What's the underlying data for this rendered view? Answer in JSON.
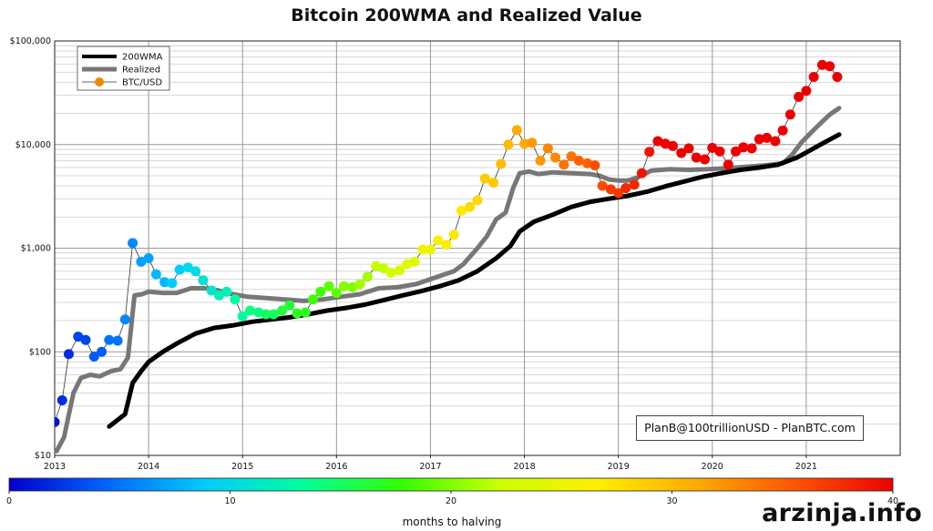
{
  "watermark": "arzinja.info",
  "credit": "PlanB@100trillionUSD  -  PlanBTC.com",
  "chart_data": {
    "type": "line",
    "title": "Bitcoin 200WMA and Realized Value",
    "y_scale": "log",
    "ylim": [
      10,
      100000
    ],
    "xlim": [
      2013.0,
      2022.0
    ],
    "y_ticks": [
      10,
      100,
      1000,
      10000,
      100000
    ],
    "y_tick_labels": [
      "$10",
      "$100",
      "$1,000",
      "$10,000",
      "$100,000"
    ],
    "x_ticks": [
      2013,
      2014,
      2015,
      2016,
      2017,
      2018,
      2019,
      2020,
      2021
    ],
    "x_tick_labels": [
      "2013",
      "2014",
      "2015",
      "2016",
      "2017",
      "2018",
      "2019",
      "2020",
      "2021"
    ],
    "grid": true,
    "legend_position": "top-left",
    "colorbar": {
      "label": "months to halving",
      "ticks": [
        0,
        10,
        20,
        30,
        40
      ],
      "tick_labels": [
        "0",
        "10",
        "20",
        "30",
        "40"
      ],
      "colors": [
        "#0000cc",
        "#0066ff",
        "#00ccff",
        "#00ff99",
        "#33ff00",
        "#ccff00",
        "#ffee00",
        "#ffaa00",
        "#ff5500",
        "#ee0000"
      ]
    },
    "series": [
      {
        "name": "200WMA",
        "color": "#000000",
        "points": [
          [
            2013.58,
            19
          ],
          [
            2013.75,
            25
          ],
          [
            2013.83,
            50
          ],
          [
            2013.92,
            65
          ],
          [
            2014.0,
            80
          ],
          [
            2014.15,
            100
          ],
          [
            2014.3,
            120
          ],
          [
            2014.5,
            150
          ],
          [
            2014.7,
            170
          ],
          [
            2014.9,
            180
          ],
          [
            2015.1,
            195
          ],
          [
            2015.3,
            205
          ],
          [
            2015.5,
            215
          ],
          [
            2015.7,
            230
          ],
          [
            2015.9,
            250
          ],
          [
            2016.1,
            265
          ],
          [
            2016.3,
            285
          ],
          [
            2016.5,
            315
          ],
          [
            2016.7,
            350
          ],
          [
            2016.9,
            385
          ],
          [
            2017.1,
            430
          ],
          [
            2017.3,
            490
          ],
          [
            2017.5,
            600
          ],
          [
            2017.7,
            800
          ],
          [
            2017.85,
            1050
          ],
          [
            2017.95,
            1450
          ],
          [
            2018.1,
            1800
          ],
          [
            2018.3,
            2100
          ],
          [
            2018.5,
            2500
          ],
          [
            2018.7,
            2800
          ],
          [
            2018.9,
            3000
          ],
          [
            2019.1,
            3200
          ],
          [
            2019.3,
            3500
          ],
          [
            2019.5,
            3950
          ],
          [
            2019.7,
            4400
          ],
          [
            2019.9,
            4900
          ],
          [
            2020.1,
            5300
          ],
          [
            2020.3,
            5700
          ],
          [
            2020.5,
            6000
          ],
          [
            2020.7,
            6400
          ],
          [
            2020.9,
            7500
          ],
          [
            2021.0,
            8400
          ],
          [
            2021.15,
            10000
          ],
          [
            2021.35,
            12500
          ]
        ]
      },
      {
        "name": "Realized",
        "color": "#777777",
        "points": [
          [
            2013.02,
            11
          ],
          [
            2013.1,
            15
          ],
          [
            2013.2,
            40
          ],
          [
            2013.28,
            56
          ],
          [
            2013.38,
            60
          ],
          [
            2013.48,
            58
          ],
          [
            2013.6,
            65
          ],
          [
            2013.7,
            68
          ],
          [
            2013.78,
            88
          ],
          [
            2013.85,
            350
          ],
          [
            2013.93,
            360
          ],
          [
            2014.0,
            380
          ],
          [
            2014.15,
            370
          ],
          [
            2014.3,
            370
          ],
          [
            2014.45,
            410
          ],
          [
            2014.6,
            410
          ],
          [
            2014.75,
            390
          ],
          [
            2014.9,
            360
          ],
          [
            2015.05,
            340
          ],
          [
            2015.25,
            330
          ],
          [
            2015.45,
            320
          ],
          [
            2015.65,
            310
          ],
          [
            2015.85,
            320
          ],
          [
            2016.05,
            340
          ],
          [
            2016.25,
            360
          ],
          [
            2016.45,
            410
          ],
          [
            2016.65,
            420
          ],
          [
            2016.85,
            450
          ],
          [
            2017.05,
            520
          ],
          [
            2017.25,
            600
          ],
          [
            2017.35,
            700
          ],
          [
            2017.5,
            1000
          ],
          [
            2017.6,
            1300
          ],
          [
            2017.7,
            1900
          ],
          [
            2017.8,
            2200
          ],
          [
            2017.88,
            3800
          ],
          [
            2017.95,
            5300
          ],
          [
            2018.05,
            5500
          ],
          [
            2018.15,
            5200
          ],
          [
            2018.3,
            5400
          ],
          [
            2018.5,
            5300
          ],
          [
            2018.7,
            5200
          ],
          [
            2018.8,
            5000
          ],
          [
            2018.9,
            4600
          ],
          [
            2019.0,
            4500
          ],
          [
            2019.1,
            4500
          ],
          [
            2019.2,
            4800
          ],
          [
            2019.35,
            5600
          ],
          [
            2019.55,
            5800
          ],
          [
            2019.75,
            5700
          ],
          [
            2019.95,
            5800
          ],
          [
            2020.15,
            5900
          ],
          [
            2020.35,
            6100
          ],
          [
            2020.55,
            6300
          ],
          [
            2020.75,
            6600
          ],
          [
            2020.85,
            8000
          ],
          [
            2020.95,
            10500
          ],
          [
            2021.05,
            13000
          ],
          [
            2021.15,
            16000
          ],
          [
            2021.25,
            19500
          ],
          [
            2021.35,
            22500
          ]
        ]
      },
      {
        "name": "BTC/USD",
        "color": "#ee8a00",
        "points": [
          [
            2013.0,
            21,
            1
          ],
          [
            2013.08,
            34,
            2
          ],
          [
            2013.15,
            95,
            2
          ],
          [
            2013.25,
            140,
            3
          ],
          [
            2013.33,
            130,
            3
          ],
          [
            2013.42,
            90,
            4
          ],
          [
            2013.5,
            100,
            4
          ],
          [
            2013.58,
            130,
            5
          ],
          [
            2013.67,
            128,
            5
          ],
          [
            2013.75,
            205,
            6
          ],
          [
            2013.83,
            1120,
            6
          ],
          [
            2013.92,
            740,
            7
          ],
          [
            2014.0,
            800,
            7
          ],
          [
            2014.08,
            560,
            8
          ],
          [
            2014.17,
            470,
            8
          ],
          [
            2014.25,
            460,
            9
          ],
          [
            2014.33,
            620,
            9
          ],
          [
            2014.42,
            650,
            10
          ],
          [
            2014.5,
            600,
            10
          ],
          [
            2014.58,
            490,
            11
          ],
          [
            2014.67,
            390,
            11
          ],
          [
            2014.75,
            350,
            12
          ],
          [
            2014.83,
            380,
            12
          ],
          [
            2014.92,
            320,
            13
          ],
          [
            2015.0,
            220,
            13
          ],
          [
            2015.08,
            250,
            14
          ],
          [
            2015.17,
            240,
            14
          ],
          [
            2015.25,
            230,
            15
          ],
          [
            2015.33,
            230,
            15
          ],
          [
            2015.42,
            250,
            16
          ],
          [
            2015.5,
            280,
            16
          ],
          [
            2015.58,
            235,
            17
          ],
          [
            2015.67,
            240,
            17
          ],
          [
            2015.75,
            320,
            18
          ],
          [
            2015.83,
            380,
            18
          ],
          [
            2015.92,
            430,
            19
          ],
          [
            2016.0,
            370,
            19
          ],
          [
            2016.08,
            430,
            20
          ],
          [
            2016.17,
            420,
            20
          ],
          [
            2016.25,
            450,
            21
          ],
          [
            2016.33,
            530,
            21
          ],
          [
            2016.42,
            670,
            22
          ],
          [
            2016.5,
            640,
            22
          ],
          [
            2016.58,
            580,
            23
          ],
          [
            2016.67,
            610,
            23
          ],
          [
            2016.75,
            700,
            24
          ],
          [
            2016.83,
            740,
            24
          ],
          [
            2016.92,
            970,
            25
          ],
          [
            2017.0,
            970,
            25
          ],
          [
            2017.08,
            1190,
            26
          ],
          [
            2017.17,
            1080,
            26
          ],
          [
            2017.25,
            1350,
            27
          ],
          [
            2017.33,
            2300,
            27
          ],
          [
            2017.42,
            2500,
            28
          ],
          [
            2017.5,
            2900,
            28
          ],
          [
            2017.58,
            4700,
            29
          ],
          [
            2017.67,
            4300,
            29
          ],
          [
            2017.75,
            6500,
            30
          ],
          [
            2017.83,
            10000,
            30
          ],
          [
            2017.92,
            13800,
            31
          ],
          [
            2018.0,
            10200,
            31
          ],
          [
            2018.08,
            10400,
            32
          ],
          [
            2018.17,
            7000,
            32
          ],
          [
            2018.25,
            9200,
            33
          ],
          [
            2018.33,
            7500,
            33
          ],
          [
            2018.42,
            6400,
            34
          ],
          [
            2018.5,
            7700,
            34
          ],
          [
            2018.58,
            7000,
            35
          ],
          [
            2018.67,
            6600,
            35
          ],
          [
            2018.75,
            6300,
            36
          ],
          [
            2018.83,
            4000,
            36
          ],
          [
            2018.92,
            3700,
            37
          ],
          [
            2019.0,
            3400,
            37
          ],
          [
            2019.08,
            3800,
            38
          ],
          [
            2019.17,
            4100,
            38
          ],
          [
            2019.25,
            5300,
            39
          ],
          [
            2019.33,
            8500,
            39
          ],
          [
            2019.42,
            10800,
            40
          ],
          [
            2019.5,
            10200,
            40
          ],
          [
            2019.58,
            9700,
            41
          ],
          [
            2019.67,
            8300,
            41
          ],
          [
            2019.75,
            9200,
            42
          ],
          [
            2019.83,
            7500,
            42
          ],
          [
            2019.92,
            7200,
            43
          ],
          [
            2020.0,
            9300,
            43
          ],
          [
            2020.08,
            8600,
            44
          ],
          [
            2020.17,
            6400,
            44
          ],
          [
            2020.25,
            8600,
            45
          ],
          [
            2020.33,
            9400,
            45
          ],
          [
            2020.42,
            9200,
            46
          ],
          [
            2020.5,
            11300,
            46
          ],
          [
            2020.58,
            11600,
            47
          ],
          [
            2020.67,
            10800,
            47
          ],
          [
            2020.75,
            13700,
            48
          ],
          [
            2020.83,
            19500,
            48
          ],
          [
            2020.92,
            28900,
            49
          ],
          [
            2021.0,
            33000,
            49
          ],
          [
            2021.08,
            45000,
            50
          ],
          [
            2021.17,
            58800,
            50
          ],
          [
            2021.25,
            57000,
            51
          ],
          [
            2021.33,
            45000,
            51
          ]
        ]
      }
    ]
  }
}
